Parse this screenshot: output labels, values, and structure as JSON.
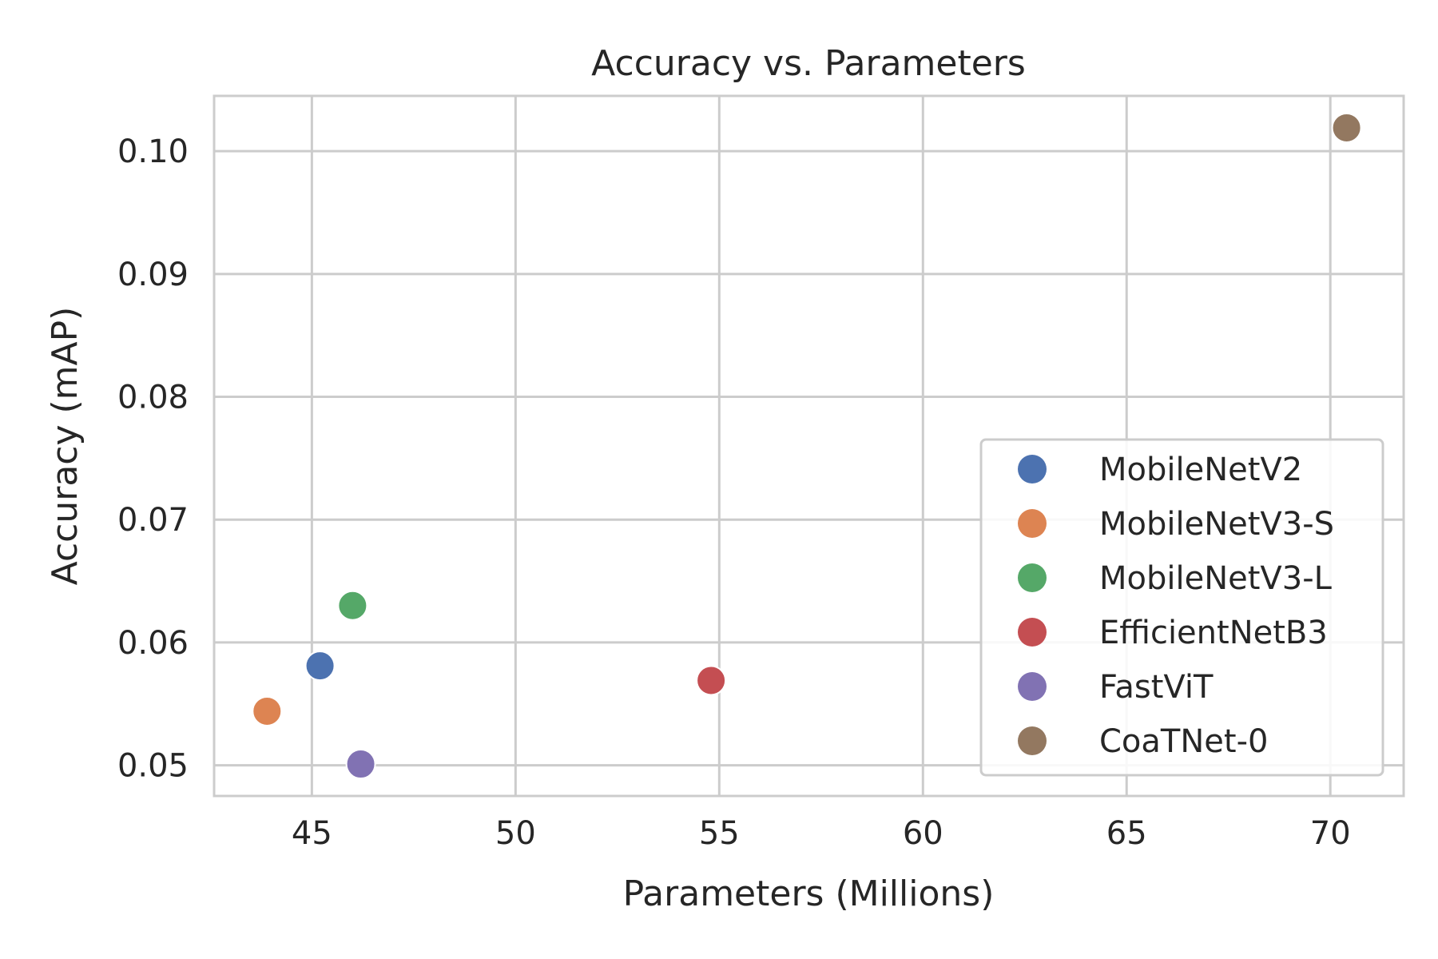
{
  "chart_data": {
    "type": "scatter",
    "title": "Accuracy vs. Parameters",
    "xlabel": "Parameters (Millions)",
    "ylabel": "Accuracy (mAP)",
    "xlim": [
      42.6,
      71.8
    ],
    "ylim": [
      0.0475,
      0.1045
    ],
    "xticks": [
      45,
      50,
      55,
      60,
      65,
      70
    ],
    "xtick_labels": [
      "45",
      "50",
      "55",
      "60",
      "65",
      "70"
    ],
    "yticks": [
      0.05,
      0.06,
      0.07,
      0.08,
      0.09,
      0.1
    ],
    "ytick_labels": [
      "0.05",
      "0.06",
      "0.07",
      "0.08",
      "0.09",
      "0.10"
    ],
    "grid": true,
    "legend_position": "lower-right",
    "series": [
      {
        "name": "MobileNetV2",
        "color": "#4c72b0",
        "points": [
          {
            "x": 45.2,
            "y": 0.0581
          }
        ]
      },
      {
        "name": "MobileNetV3-S",
        "color": "#dd8452",
        "points": [
          {
            "x": 43.9,
            "y": 0.0544
          }
        ]
      },
      {
        "name": "MobileNetV3-L",
        "color": "#55a868",
        "points": [
          {
            "x": 46.0,
            "y": 0.063
          }
        ]
      },
      {
        "name": "EfficientNetB3",
        "color": "#c44e52",
        "points": [
          {
            "x": 54.8,
            "y": 0.0569
          }
        ]
      },
      {
        "name": "FastViT",
        "color": "#8172b3",
        "points": [
          {
            "x": 46.2,
            "y": 0.0501
          }
        ]
      },
      {
        "name": "CoaTNet-0",
        "color": "#937860",
        "points": [
          {
            "x": 70.4,
            "y": 0.1019
          }
        ]
      }
    ]
  }
}
